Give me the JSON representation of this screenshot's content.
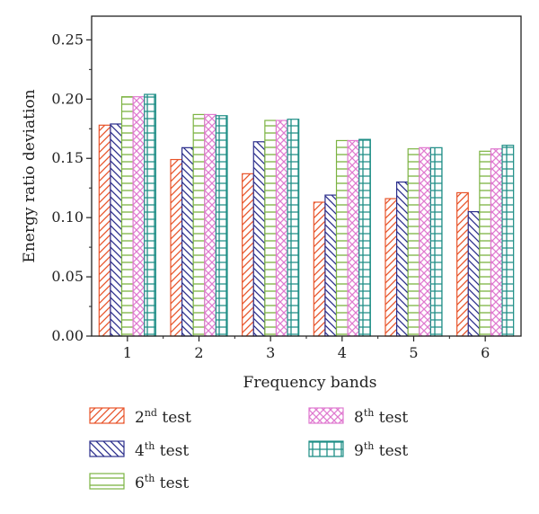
{
  "chart_data": {
    "type": "bar",
    "title": "",
    "xlabel": "Frequency bands",
    "ylabel": "Energy ratio deviation",
    "categories": [
      "1",
      "2",
      "3",
      "4",
      "5",
      "6"
    ],
    "ylim": [
      0,
      0.27
    ],
    "yticks": [
      "0.00",
      "0.05",
      "0.10",
      "0.15",
      "0.20",
      "0.25"
    ],
    "grid": false,
    "legend_position": "bottom",
    "series": [
      {
        "name": "2nd test",
        "num": "2",
        "sup": "nd",
        "suffix": " test",
        "color": "#e8542a",
        "pattern": "diagonal-forward",
        "values": [
          0.178,
          0.149,
          0.137,
          0.113,
          0.116,
          0.121
        ]
      },
      {
        "name": "4th test",
        "num": "4",
        "sup": "th",
        "suffix": " test",
        "color": "#2b2e8c",
        "pattern": "diagonal-backward",
        "values": [
          0.179,
          0.159,
          0.164,
          0.119,
          0.13,
          0.105
        ]
      },
      {
        "name": "6th test",
        "num": "6",
        "sup": "th",
        "suffix": " test",
        "color": "#7cb342",
        "pattern": "horizontal",
        "values": [
          0.202,
          0.187,
          0.182,
          0.165,
          0.158,
          0.156
        ]
      },
      {
        "name": "8th test",
        "num": "8",
        "sup": "th",
        "suffix": " test",
        "color": "#e07ad0",
        "pattern": "crosshatch",
        "values": [
          0.202,
          0.187,
          0.182,
          0.165,
          0.159,
          0.158
        ]
      },
      {
        "name": "9th test",
        "num": "9",
        "sup": "th",
        "suffix": " test",
        "color": "#1e8e86",
        "pattern": "grid",
        "values": [
          0.204,
          0.186,
          0.183,
          0.166,
          0.159,
          0.161
        ]
      }
    ]
  }
}
